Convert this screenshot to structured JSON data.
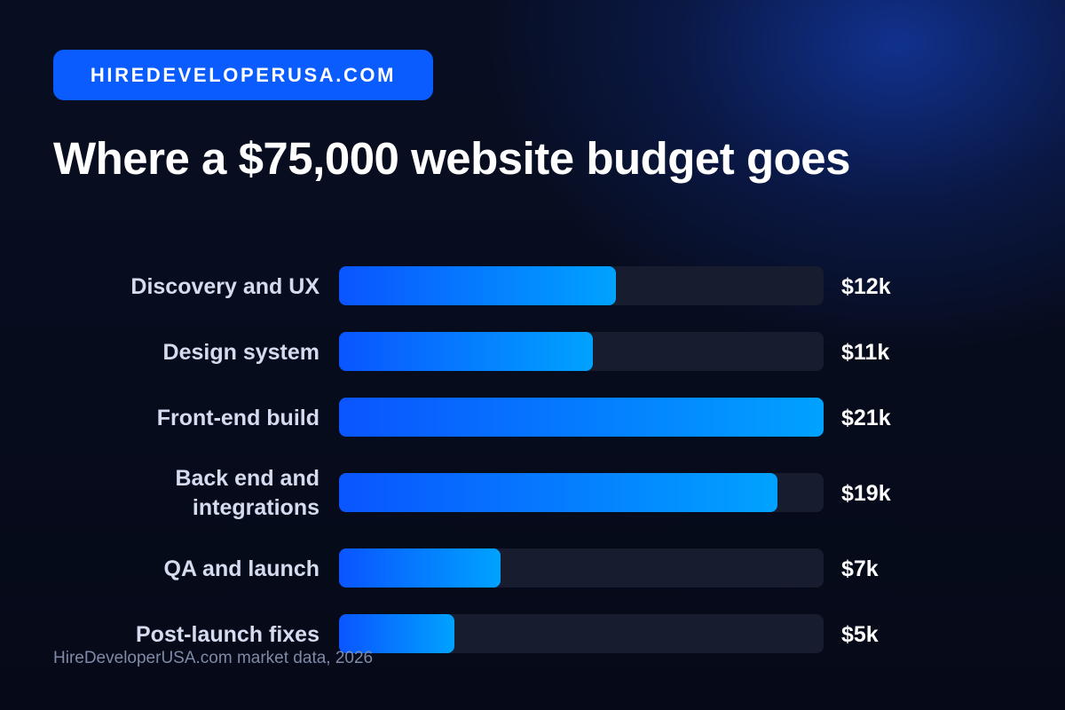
{
  "brand": {
    "label": "HIREDEVELOPERUSA.COM"
  },
  "source": "HireDeveloperUSA.com market data, 2026",
  "colors": {
    "brand_pill": "#0a5cff",
    "bar_gradient_start": "#0a55ff",
    "bar_gradient_end": "#00a2ff",
    "bar_track": "#171d2f",
    "background": "#070c1c"
  },
  "chart_data": {
    "type": "bar",
    "orientation": "horizontal",
    "title": "Where a $75,000 website budget goes",
    "categories": [
      "Discovery and UX",
      "Design system",
      "Front-end build",
      "Back end and integrations",
      "QA and launch",
      "Post-launch fixes"
    ],
    "values": [
      12,
      11,
      21,
      19,
      7,
      5
    ],
    "value_labels": [
      "$12k",
      "$11k",
      "$21k",
      "$19k",
      "$7k",
      "$5k"
    ],
    "unit": "thousand USD",
    "xlim": [
      0,
      21
    ],
    "grid": false,
    "legend": "none"
  }
}
